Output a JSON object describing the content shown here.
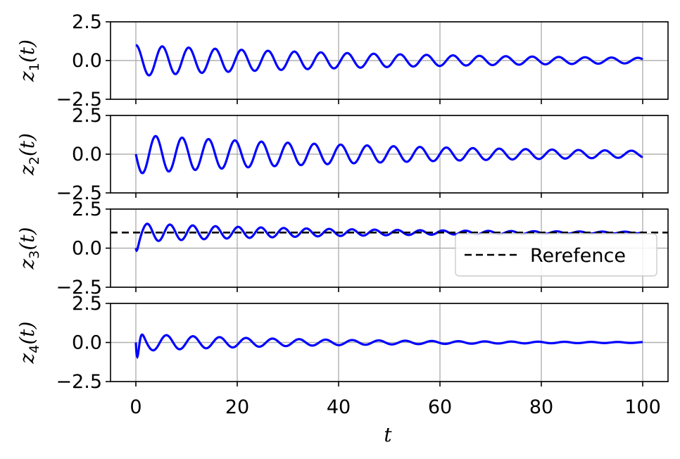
{
  "chart_data": {
    "type": "line",
    "x_label": "t",
    "x_ticks": [
      0,
      20,
      40,
      60,
      80,
      100
    ],
    "xlim": [
      -5,
      105
    ],
    "grid": true,
    "legend": {
      "location": "lower-right",
      "panel": 2,
      "entries": [
        {
          "label": "Rerefence",
          "style": "dashed",
          "color": "#000000"
        }
      ]
    },
    "panels": [
      {
        "ylabel_var": "z",
        "ylabel_sub": "1",
        "ylabel_arg": "(t)",
        "ylim": [
          -2.5,
          2.5
        ],
        "y_ticks": [
          -2.5,
          0.0,
          2.5
        ],
        "series": [
          {
            "color": "#0000ff",
            "model": "damped_cos",
            "amplitude": 1.0,
            "decay": 0.0175,
            "omega": 1.205,
            "phase": 0.0
          }
        ]
      },
      {
        "ylabel_var": "z",
        "ylabel_sub": "2",
        "ylabel_arg": "(t)",
        "ylim": [
          -2.5,
          2.5
        ],
        "y_ticks": [
          -2.5,
          0.0,
          2.5
        ],
        "series": [
          {
            "color": "#0000ff",
            "model": "damped_sin",
            "amplitude": -1.25,
            "decay": 0.0175,
            "omega": 1.205,
            "phase": 0.0
          }
        ]
      },
      {
        "ylabel_var": "z",
        "ylabel_sub": "3",
        "ylabel_arg": "(t)",
        "ylim": [
          -2.5,
          2.5
        ],
        "y_ticks": [
          -2.5,
          0.0,
          2.5
        ],
        "reference": 1.0,
        "series": [
          {
            "color": "#0000ff",
            "model": "step_response",
            "target": 1.0,
            "amplitude": 0.6,
            "decay": 0.025,
            "omega": 1.4,
            "phase": 0.0
          }
        ]
      },
      {
        "ylabel_var": "z",
        "ylabel_sub": "4",
        "ylabel_arg": "(t)",
        "ylim": [
          -2.5,
          2.5
        ],
        "y_ticks": [
          -2.5,
          0.0,
          2.5
        ],
        "series": [
          {
            "color": "#0000ff",
            "model": "impulse",
            "amplitude": 1.6,
            "decay": 0.03,
            "omega": 1.2,
            "phase": 0.0
          }
        ]
      }
    ]
  }
}
